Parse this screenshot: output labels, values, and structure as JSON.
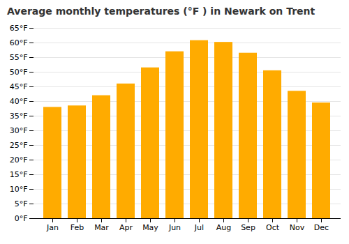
{
  "chart_data": {
    "type": "bar",
    "title": "Average monthly temperatures (°F ) in Newark on Trent",
    "categories": [
      "Jan",
      "Feb",
      "Mar",
      "Apr",
      "May",
      "Jun",
      "Jul",
      "Aug",
      "Sep",
      "Oct",
      "Nov",
      "Dec"
    ],
    "values": [
      38.0,
      38.5,
      42.0,
      46.0,
      51.5,
      57.0,
      60.8,
      60.2,
      56.5,
      50.5,
      43.5,
      39.5
    ],
    "color": "#FFAB00",
    "ylim": [
      0,
      65
    ],
    "yticks": [
      {
        "value": 0,
        "label": "0°F"
      },
      {
        "value": 5,
        "label": "5°F"
      },
      {
        "value": 10,
        "label": "10°F"
      },
      {
        "value": 15,
        "label": "15°F"
      },
      {
        "value": 20,
        "label": "20°F"
      },
      {
        "value": 25,
        "label": "25°F"
      },
      {
        "value": 30,
        "label": "30°F"
      },
      {
        "value": 35,
        "label": "35°F"
      },
      {
        "value": 40,
        "label": "40°F"
      },
      {
        "value": 45,
        "label": "45°F"
      },
      {
        "value": 50,
        "label": "50°F"
      },
      {
        "value": 55,
        "label": "55°F"
      },
      {
        "value": 60,
        "label": "60°F"
      },
      {
        "value": 65,
        "label": "65°F"
      }
    ],
    "grid": true
  }
}
